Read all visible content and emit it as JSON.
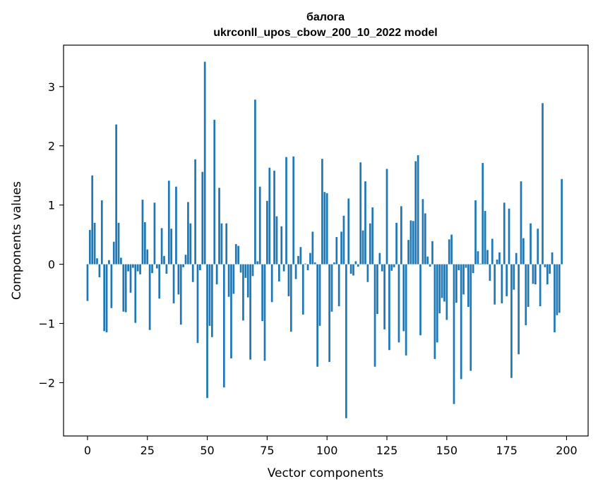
{
  "chart_data": {
    "type": "bar",
    "title_line1": "балога",
    "title_line2": "ukrconll_upos_cbow_200_10_2022 model",
    "xlabel": "Vector components",
    "ylabel": "Components values",
    "xlim": [
      -10,
      209
    ],
    "ylim": [
      -2.9,
      3.7
    ],
    "xticks": [
      0,
      25,
      50,
      75,
      100,
      125,
      150,
      175,
      200
    ],
    "xtick_labels": [
      "0",
      "25",
      "50",
      "75",
      "100",
      "125",
      "150",
      "175",
      "200"
    ],
    "yticks": [
      -2,
      -1,
      0,
      1,
      2,
      3
    ],
    "ytick_labels": [
      "−2",
      "−1",
      "0",
      "1",
      "2",
      "3"
    ],
    "grid": false,
    "bar_color": "#1f77b4",
    "values": [
      -0.62,
      0.58,
      1.5,
      0.7,
      0.1,
      -0.22,
      1.08,
      -1.13,
      -1.15,
      0.07,
      -0.74,
      0.38,
      2.36,
      0.7,
      0.11,
      -0.8,
      -0.81,
      -0.12,
      -0.48,
      -0.06,
      -0.99,
      -0.12,
      -0.17,
      1.09,
      0.71,
      0.25,
      -1.11,
      -0.15,
      1.04,
      -0.07,
      -0.58,
      0.61,
      0.14,
      -0.16,
      1.41,
      0.6,
      -0.66,
      1.31,
      -0.51,
      -1.02,
      -0.05,
      0.16,
      1.05,
      0.69,
      -0.3,
      1.77,
      -1.33,
      -0.1,
      1.56,
      3.42,
      -2.26,
      -1.04,
      -1.23,
      2.44,
      -0.34,
      1.29,
      0.69,
      -2.08,
      0.69,
      -0.55,
      -1.59,
      -0.5,
      0.34,
      0.31,
      -0.14,
      -0.95,
      -0.23,
      -0.56,
      -1.61,
      -0.2,
      2.78,
      0.05,
      1.31,
      -0.96,
      -1.63,
      1.07,
      1.63,
      -0.64,
      1.58,
      0.81,
      -0.29,
      0.64,
      -0.12,
      1.81,
      -0.54,
      -1.14,
      1.82,
      -0.25,
      0.14,
      0.29,
      -0.85,
      0.01,
      -0.1,
      0.19,
      0.55,
      0.03,
      -1.73,
      -1.04,
      1.78,
      1.22,
      1.2,
      -1.65,
      -0.8,
      0.03,
      0.46,
      -0.71,
      0.55,
      0.82,
      -2.6,
      1.11,
      -0.16,
      -0.19,
      0.05,
      -0.04,
      1.72,
      0.57,
      1.4,
      -0.3,
      0.69,
      0.96,
      -1.73,
      -0.84,
      0.19,
      -0.12,
      -1.1,
      1.61,
      -1.45,
      -0.11,
      -0.05,
      0.7,
      -1.32,
      0.98,
      -1.13,
      -1.54,
      0.41,
      0.74,
      0.73,
      1.74,
      1.84,
      -1.2,
      1.1,
      0.86,
      0.13,
      -0.04,
      0.39,
      -1.6,
      -1.32,
      -0.83,
      -0.57,
      -0.63,
      -0.94,
      0.42,
      0.5,
      -2.36,
      -0.65,
      -0.1,
      -1.94,
      -0.51,
      -0.06,
      -0.72,
      -1.8,
      -0.15,
      1.08,
      0.22,
      0.01,
      1.71,
      0.9,
      0.24,
      -0.28,
      0.43,
      -0.68,
      0.08,
      0.2,
      -0.66,
      1.04,
      -0.54,
      0.94,
      -1.92,
      -0.43,
      0.19,
      -1.52,
      1.4,
      0.44,
      -1.03,
      -0.72,
      0.69,
      -0.33,
      -0.34,
      0.6,
      -0.71,
      2.72,
      -0.05,
      -0.34,
      -0.16,
      0.2,
      -1.15,
      -0.86,
      -0.82,
      1.44
    ]
  }
}
